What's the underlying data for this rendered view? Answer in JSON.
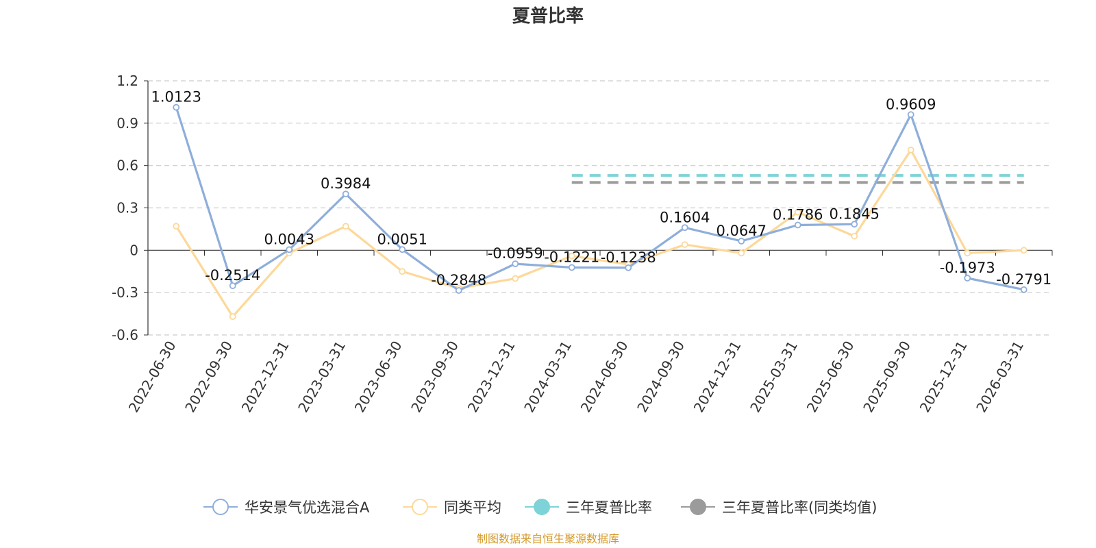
{
  "chart_data": {
    "type": "line",
    "title": "夏普比率",
    "categories": [
      "2022-06-30",
      "2022-09-30",
      "2022-12-31",
      "2023-03-31",
      "2023-06-30",
      "2023-09-30",
      "2023-12-31",
      "2024-03-31",
      "2024-06-30",
      "2024-09-30",
      "2024-12-31",
      "2025-03-31",
      "2025-06-30",
      "2025-09-30",
      "2025-12-31",
      "2026-03-31"
    ],
    "yticks": [
      "1.2",
      "0.9",
      "0.6",
      "0.3",
      "0",
      "-0.3",
      "-0.6"
    ],
    "ylim": [
      -0.6,
      1.2
    ],
    "grid": true,
    "legend_position": "bottom",
    "series": [
      {
        "name": "华安景气优选混合A",
        "color": "#8eaedb",
        "values": [
          1.0123,
          -0.2514,
          0.0043,
          0.3984,
          0.0051,
          -0.2848,
          -0.0959,
          -0.1221,
          -0.1238,
          0.1604,
          0.0647,
          0.1786,
          0.1845,
          0.9609,
          -0.1973,
          -0.2791
        ],
        "labels": [
          "1.0123",
          "-0.2514",
          "0.0043",
          "0.3984",
          "0.0051",
          "-0.2848",
          "-0.0959",
          "-0.1221",
          "-0.1238",
          "0.1604",
          "0.0647",
          "0.1786",
          "0.1845",
          "0.9609",
          "-0.1973",
          "-0.2791"
        ]
      },
      {
        "name": "同类平均",
        "color": "#fdd899",
        "values": [
          0.17,
          -0.47,
          -0.02,
          0.17,
          -0.15,
          -0.27,
          -0.2,
          -0.04,
          -0.1,
          0.04,
          -0.02,
          0.27,
          0.1,
          0.71,
          -0.02,
          0.0
        ]
      }
    ],
    "reference_lines": [
      {
        "name": "三年夏普比率",
        "color": "#7dd3d8",
        "value": 0.53,
        "from_category": "2024-03-31",
        "to_category": "2026-03-31"
      },
      {
        "name": "三年夏普比率(同类均值)",
        "color": "#9b9b9b",
        "value": 0.48,
        "from_category": "2024-03-31",
        "to_category": "2026-03-31"
      }
    ],
    "source_note": "制图数据来自恒生聚源数据库"
  }
}
